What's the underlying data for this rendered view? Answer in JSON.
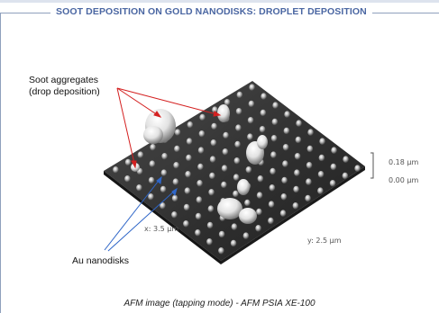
{
  "header": {
    "title": "SOOT DEPOSITION ON GOLD NANODISKS: DROPLET DEPOSITION"
  },
  "annotations": {
    "soot_line1": "Soot aggregates",
    "soot_line2": "(drop deposition)",
    "au": "Au nanodisks"
  },
  "scale": {
    "z_top": "0.18 µm",
    "z_bottom": "0.00 µm",
    "x_axis": "x: 3.5 µm",
    "y_axis": "y: 2.5 µm"
  },
  "caption": "AFM image (tapping mode) - AFM PSIA XE-100",
  "colors": {
    "title": "#4a66a2",
    "soot_arrow": "#d42020",
    "au_arrow": "#2f66c8"
  }
}
